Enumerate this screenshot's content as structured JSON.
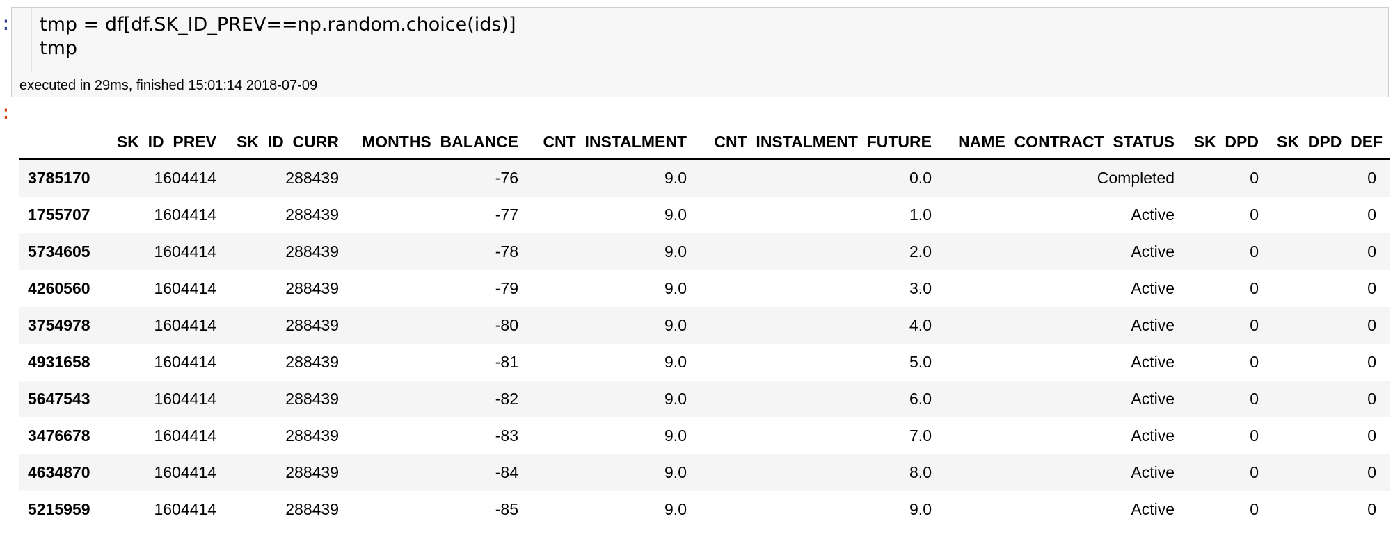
{
  "prompts": {
    "input": ":",
    "output": ":"
  },
  "code_cell": {
    "lines": [
      "tmp = df[df.SK_ID_PREV==np.random.choice(ids)]",
      "tmp"
    ],
    "status": "executed in 29ms, finished 15:01:14 2018-07-09"
  },
  "table": {
    "index_header": "",
    "columns": [
      "SK_ID_PREV",
      "SK_ID_CURR",
      "MONTHS_BALANCE",
      "CNT_INSTALMENT",
      "CNT_INSTALMENT_FUTURE",
      "NAME_CONTRACT_STATUS",
      "SK_DPD",
      "SK_DPD_DEF"
    ],
    "rows": [
      {
        "index": "3785170",
        "cells": [
          "1604414",
          "288439",
          "-76",
          "9.0",
          "0.0",
          "Completed",
          "0",
          "0"
        ]
      },
      {
        "index": "1755707",
        "cells": [
          "1604414",
          "288439",
          "-77",
          "9.0",
          "1.0",
          "Active",
          "0",
          "0"
        ]
      },
      {
        "index": "5734605",
        "cells": [
          "1604414",
          "288439",
          "-78",
          "9.0",
          "2.0",
          "Active",
          "0",
          "0"
        ]
      },
      {
        "index": "4260560",
        "cells": [
          "1604414",
          "288439",
          "-79",
          "9.0",
          "3.0",
          "Active",
          "0",
          "0"
        ]
      },
      {
        "index": "3754978",
        "cells": [
          "1604414",
          "288439",
          "-80",
          "9.0",
          "4.0",
          "Active",
          "0",
          "0"
        ]
      },
      {
        "index": "4931658",
        "cells": [
          "1604414",
          "288439",
          "-81",
          "9.0",
          "5.0",
          "Active",
          "0",
          "0"
        ]
      },
      {
        "index": "5647543",
        "cells": [
          "1604414",
          "288439",
          "-82",
          "9.0",
          "6.0",
          "Active",
          "0",
          "0"
        ]
      },
      {
        "index": "3476678",
        "cells": [
          "1604414",
          "288439",
          "-83",
          "9.0",
          "7.0",
          "Active",
          "0",
          "0"
        ]
      },
      {
        "index": "4634870",
        "cells": [
          "1604414",
          "288439",
          "-84",
          "9.0",
          "8.0",
          "Active",
          "0",
          "0"
        ]
      },
      {
        "index": "5215959",
        "cells": [
          "1604414",
          "288439",
          "-85",
          "9.0",
          "9.0",
          "Active",
          "0",
          "0"
        ]
      }
    ]
  },
  "colors": {
    "input_prompt": "#303F9F",
    "output_prompt": "#D84315",
    "code_background": "#f7f7f7",
    "row_stripe": "#f5f5f5"
  }
}
